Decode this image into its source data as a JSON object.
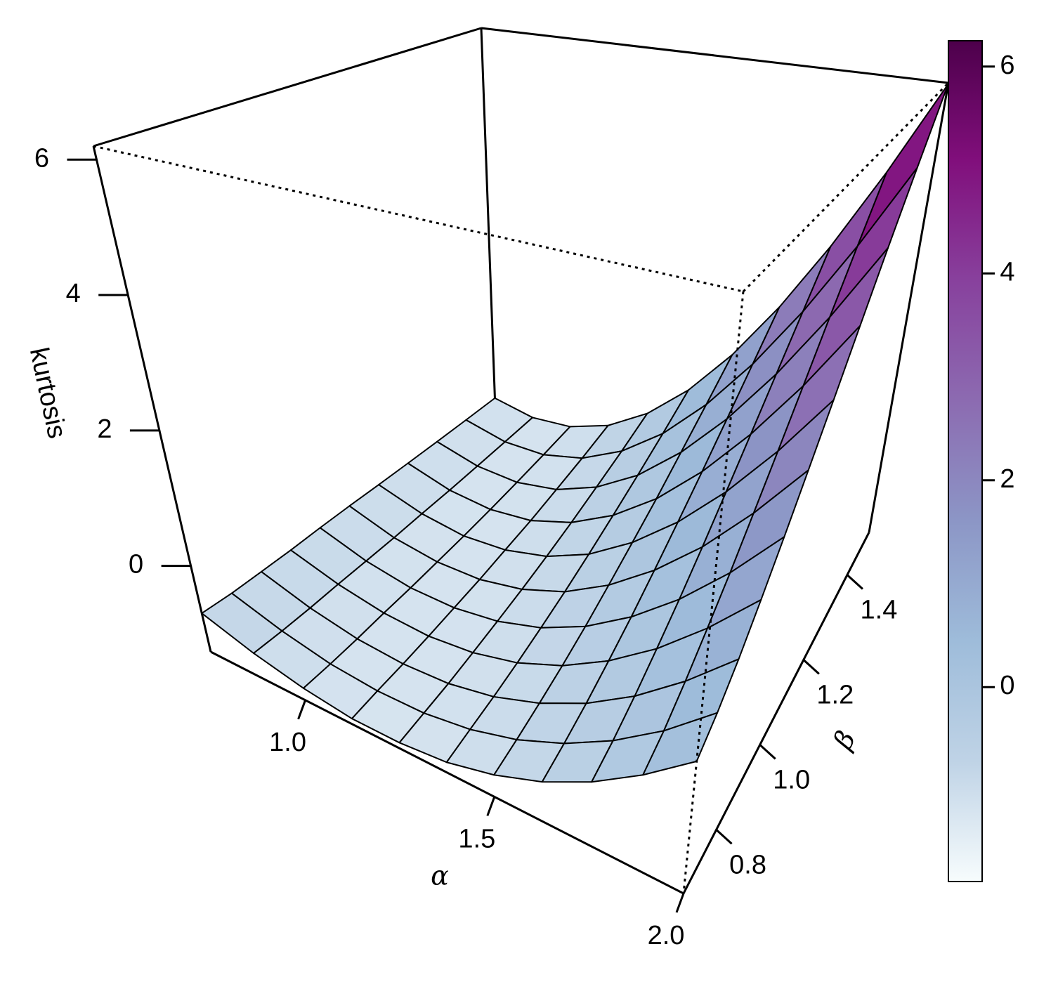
{
  "chart_data": {
    "type": "surface",
    "xlabel": "α",
    "ylabel": "β",
    "zlabel": "kurtosis",
    "x": [
      0.75,
      0.875,
      1.0,
      1.125,
      1.25,
      1.375,
      1.5,
      1.625,
      1.75,
      1.875,
      2.0
    ],
    "y": [
      0.65,
      0.735,
      0.82,
      0.905,
      0.99,
      1.075,
      1.16,
      1.245,
      1.33,
      1.415,
      1.5
    ],
    "z": [
      [
        -0.7,
        -0.94,
        -1.1,
        -1.19,
        -1.19,
        -1.13,
        -0.98,
        -0.76,
        -0.46,
        -0.08,
        0.37
      ],
      [
        -0.75,
        -0.98,
        -1.13,
        -1.19,
        -1.18,
        -1.09,
        -0.92,
        -0.67,
        -0.34,
        0.07,
        0.57
      ],
      [
        -0.78,
        -1.01,
        -1.15,
        -1.2,
        -1.17,
        -1.05,
        -0.84,
        -0.55,
        -0.17,
        0.3,
        0.85
      ],
      [
        -0.81,
        -1.03,
        -1.16,
        -1.2,
        -1.14,
        -0.99,
        -0.74,
        -0.39,
        0.05,
        0.59,
        1.22
      ],
      [
        -0.83,
        -1.06,
        -1.18,
        -1.19,
        -1.1,
        -0.91,
        -0.61,
        -0.2,
        0.31,
        0.93,
        1.66
      ],
      [
        -0.86,
        -1.09,
        -1.19,
        -1.18,
        -1.05,
        -0.81,
        -0.44,
        0.04,
        0.63,
        1.35,
        2.18
      ],
      [
        -0.9,
        -1.11,
        -1.2,
        -1.15,
        -0.98,
        -0.68,
        -0.24,
        0.32,
        1.01,
        1.83,
        2.78
      ],
      [
        -0.94,
        -1.14,
        -1.2,
        -1.12,
        -0.89,
        -0.52,
        -0.01,
        0.65,
        1.45,
        2.39,
        3.48
      ],
      [
        -0.98,
        -1.16,
        -1.19,
        -1.06,
        -0.77,
        -0.33,
        0.28,
        1.04,
        1.96,
        3.04,
        4.28
      ],
      [
        -1.02,
        -1.18,
        -1.17,
        -0.99,
        -0.63,
        -0.1,
        0.61,
        1.49,
        2.54,
        3.77,
        5.17
      ],
      [
        -1.06,
        -1.2,
        -1.14,
        -0.89,
        -0.45,
        0.18,
        1.0,
        2.01,
        3.21,
        4.6,
        6.18
      ]
    ],
    "xlim": [
      0.75,
      2.0
    ],
    "ylim": [
      0.65,
      1.5
    ],
    "zlim": [
      -1.27,
      6.2
    ],
    "xticks": [
      {
        "value": 1,
        "label": "1.0"
      },
      1.5,
      {
        "value": 2,
        "label": "2.0"
      }
    ],
    "yticks": [
      0.8,
      {
        "value": 1,
        "label": "1.0"
      },
      1.2,
      1.4
    ],
    "zticks": [
      0,
      2,
      4,
      6
    ],
    "colorbar": {
      "lim": [
        -1.88,
        6.25
      ],
      "ticks": [
        0,
        2,
        4,
        6
      ],
      "colors": [
        "#f7fcfd",
        "#bfd3e6",
        "#9ebcda",
        "#8c96c6",
        "#8c6bb1",
        "#88419d",
        "#810f7c",
        "#4d004b"
      ]
    }
  }
}
